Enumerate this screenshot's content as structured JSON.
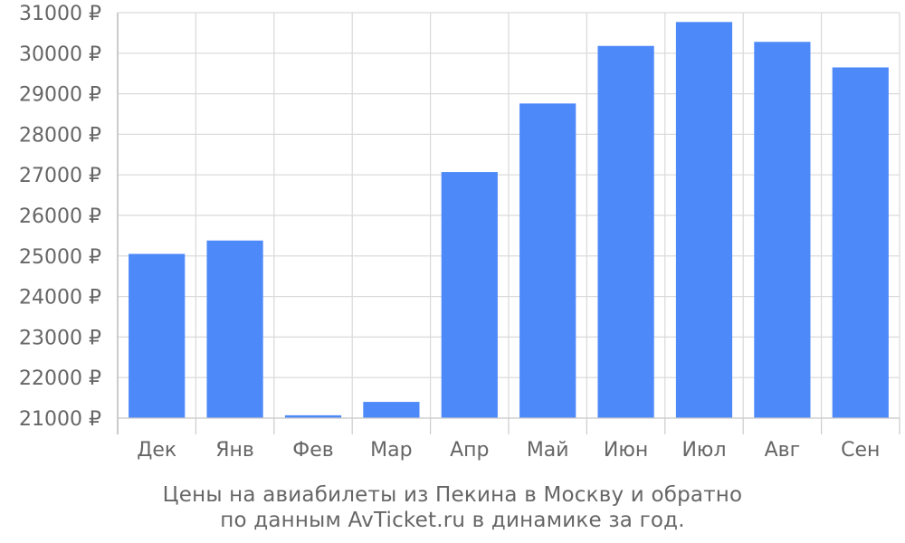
{
  "chart_data": {
    "type": "bar",
    "categories": [
      "Дек",
      "Янв",
      "Фев",
      "Мар",
      "Апр",
      "Май",
      "Июн",
      "Июл",
      "Авг",
      "Сен"
    ],
    "values": [
      25050,
      25380,
      21070,
      21400,
      27070,
      28760,
      30180,
      30770,
      30280,
      29650
    ],
    "ylim": [
      21000,
      31000
    ],
    "ytick_values": [
      21000,
      22000,
      23000,
      24000,
      25000,
      26000,
      27000,
      28000,
      29000,
      30000,
      31000
    ],
    "ytick_labels": [
      "21000 ₽",
      "22000 ₽",
      "23000 ₽",
      "24000 ₽",
      "25000 ₽",
      "26000 ₽",
      "27000 ₽",
      "28000 ₽",
      "29000 ₽",
      "30000 ₽",
      "31000 ₽"
    ],
    "grid": true,
    "bar_color": "#4d89f9",
    "caption": [
      "Цены на авиабилеты из Пекина в Москву и обратно",
      "по данным AvTicket.ru в динамике за год."
    ]
  }
}
